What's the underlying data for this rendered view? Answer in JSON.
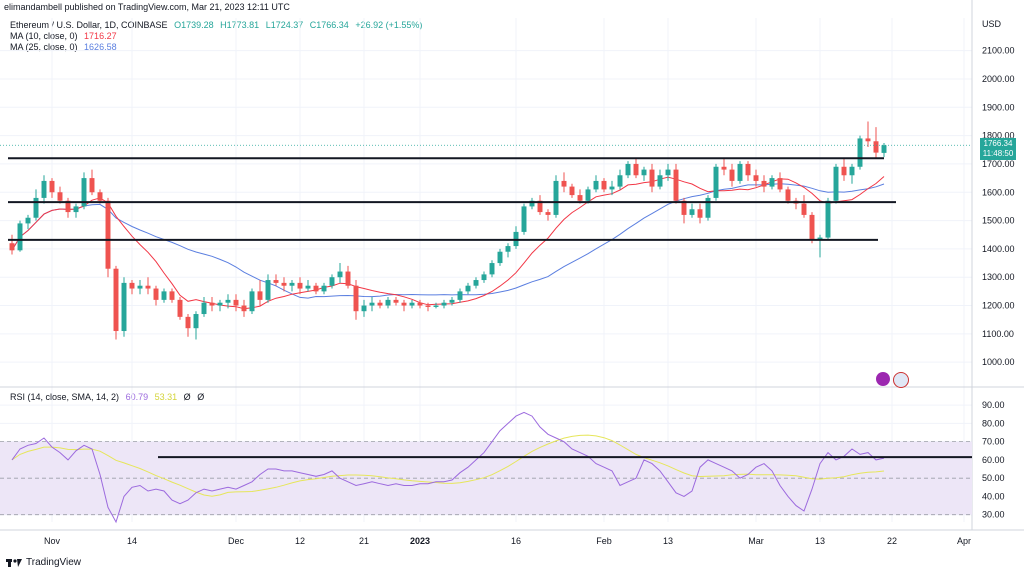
{
  "header": {
    "published": "elimandambell published on TradingView.com, Mar 21, 2023 12:11 UTC"
  },
  "legend": {
    "symbol": "Ethereum / U.S. Dollar, 1D, COINBASE",
    "open": "O1739.28",
    "high": "H1773.81",
    "low": "L1724.37",
    "close": "C1766.34",
    "change": "+26.92 (+1.55%)",
    "ma10_label": "MA (10, close, 0)",
    "ma10_value": "1716.27",
    "ma25_label": "MA (25, close, 0)",
    "ma25_value": "1626.58",
    "rsi_label": "RSI (14, close, SMA, 14, 2)",
    "rsi_value": "60.79",
    "rsi_ma_value": "53.31",
    "rsi_extra1": "Ø",
    "rsi_extra2": "Ø"
  },
  "price_axis": {
    "currency": "USD",
    "ticks": [
      "2100.00",
      "2000.00",
      "1900.00",
      "1800.00",
      "1700.00",
      "1600.00",
      "1500.00",
      "1400.00",
      "1300.00",
      "1200.00",
      "1100.00",
      "1000.00"
    ],
    "last_price": "1766.34",
    "countdown": "11:48:50"
  },
  "rsi_axis": {
    "ticks": [
      "90.00",
      "80.00",
      "70.00",
      "60.00",
      "50.00",
      "40.00",
      "30.00"
    ]
  },
  "time_axis": {
    "labels": [
      "Nov",
      "14",
      "Dec",
      "12",
      "21",
      "2023",
      "16",
      "Feb",
      "13",
      "Mar",
      "13",
      "22",
      "Apr"
    ]
  },
  "footer": {
    "brand": "TradingView"
  },
  "colors": {
    "up": "#26a69a",
    "down": "#ef5350",
    "ma10": "#f23645",
    "ma25": "#5b7fe0",
    "rsi": "#9c6ade",
    "rsi_ma": "#e6e65a",
    "rsi_band": "#ede6f7"
  },
  "chart_data": {
    "type": "candlestick",
    "title": "Ethereum / U.S. Dollar, 1D, COINBASE",
    "ylim": [
      930,
      2180
    ],
    "candles": [
      [
        1420,
        1450,
        1380,
        1395
      ],
      [
        1395,
        1500,
        1390,
        1490
      ],
      [
        1490,
        1520,
        1470,
        1510
      ],
      [
        1510,
        1610,
        1500,
        1580
      ],
      [
        1580,
        1660,
        1560,
        1640
      ],
      [
        1640,
        1650,
        1580,
        1600
      ],
      [
        1600,
        1620,
        1560,
        1570
      ],
      [
        1570,
        1580,
        1510,
        1530
      ],
      [
        1530,
        1560,
        1510,
        1550
      ],
      [
        1550,
        1670,
        1540,
        1650
      ],
      [
        1650,
        1680,
        1590,
        1600
      ],
      [
        1600,
        1610,
        1560,
        1570
      ],
      [
        1570,
        1580,
        1300,
        1330
      ],
      [
        1330,
        1340,
        1080,
        1110
      ],
      [
        1110,
        1300,
        1090,
        1280
      ],
      [
        1280,
        1290,
        1240,
        1260
      ],
      [
        1260,
        1290,
        1240,
        1270
      ],
      [
        1270,
        1300,
        1240,
        1260
      ],
      [
        1260,
        1270,
        1200,
        1220
      ],
      [
        1220,
        1260,
        1210,
        1250
      ],
      [
        1250,
        1260,
        1210,
        1220
      ],
      [
        1220,
        1230,
        1150,
        1160
      ],
      [
        1160,
        1170,
        1090,
        1120
      ],
      [
        1120,
        1180,
        1080,
        1170
      ],
      [
        1170,
        1230,
        1160,
        1210
      ],
      [
        1210,
        1230,
        1180,
        1200
      ],
      [
        1200,
        1220,
        1180,
        1210
      ],
      [
        1210,
        1240,
        1190,
        1220
      ],
      [
        1220,
        1240,
        1180,
        1200
      ],
      [
        1200,
        1220,
        1160,
        1180
      ],
      [
        1180,
        1260,
        1170,
        1250
      ],
      [
        1250,
        1290,
        1200,
        1220
      ],
      [
        1220,
        1310,
        1210,
        1290
      ],
      [
        1290,
        1310,
        1270,
        1280
      ],
      [
        1280,
        1300,
        1250,
        1270
      ],
      [
        1270,
        1290,
        1250,
        1280
      ],
      [
        1280,
        1300,
        1240,
        1260
      ],
      [
        1260,
        1290,
        1250,
        1270
      ],
      [
        1270,
        1280,
        1240,
        1250
      ],
      [
        1250,
        1280,
        1240,
        1270
      ],
      [
        1270,
        1310,
        1260,
        1300
      ],
      [
        1300,
        1350,
        1280,
        1320
      ],
      [
        1320,
        1340,
        1260,
        1270
      ],
      [
        1270,
        1290,
        1150,
        1180
      ],
      [
        1180,
        1220,
        1160,
        1200
      ],
      [
        1200,
        1230,
        1180,
        1210
      ],
      [
        1210,
        1220,
        1190,
        1200
      ],
      [
        1200,
        1230,
        1190,
        1220
      ],
      [
        1220,
        1230,
        1200,
        1210
      ],
      [
        1210,
        1220,
        1180,
        1200
      ],
      [
        1200,
        1220,
        1190,
        1210
      ],
      [
        1210,
        1220,
        1190,
        1200
      ],
      [
        1200,
        1210,
        1180,
        1195
      ],
      [
        1195,
        1210,
        1190,
        1200
      ],
      [
        1200,
        1220,
        1190,
        1210
      ],
      [
        1210,
        1230,
        1200,
        1220
      ],
      [
        1220,
        1260,
        1210,
        1250
      ],
      [
        1250,
        1280,
        1240,
        1270
      ],
      [
        1270,
        1300,
        1260,
        1290
      ],
      [
        1290,
        1320,
        1280,
        1310
      ],
      [
        1310,
        1360,
        1300,
        1350
      ],
      [
        1350,
        1400,
        1340,
        1390
      ],
      [
        1390,
        1420,
        1370,
        1410
      ],
      [
        1410,
        1480,
        1400,
        1460
      ],
      [
        1460,
        1560,
        1450,
        1550
      ],
      [
        1550,
        1580,
        1540,
        1570
      ],
      [
        1570,
        1590,
        1520,
        1530
      ],
      [
        1530,
        1540,
        1500,
        1520
      ],
      [
        1520,
        1660,
        1510,
        1640
      ],
      [
        1640,
        1670,
        1600,
        1620
      ],
      [
        1620,
        1630,
        1580,
        1590
      ],
      [
        1590,
        1610,
        1560,
        1570
      ],
      [
        1570,
        1620,
        1560,
        1610
      ],
      [
        1610,
        1660,
        1600,
        1640
      ],
      [
        1640,
        1650,
        1600,
        1610
      ],
      [
        1610,
        1640,
        1590,
        1620
      ],
      [
        1620,
        1680,
        1610,
        1660
      ],
      [
        1660,
        1710,
        1650,
        1700
      ],
      [
        1700,
        1720,
        1650,
        1660
      ],
      [
        1660,
        1690,
        1640,
        1680
      ],
      [
        1680,
        1700,
        1600,
        1620
      ],
      [
        1620,
        1680,
        1610,
        1660
      ],
      [
        1660,
        1700,
        1640,
        1680
      ],
      [
        1680,
        1700,
        1560,
        1570
      ],
      [
        1570,
        1580,
        1490,
        1520
      ],
      [
        1520,
        1560,
        1510,
        1540
      ],
      [
        1540,
        1560,
        1490,
        1510
      ],
      [
        1510,
        1590,
        1500,
        1580
      ],
      [
        1580,
        1700,
        1570,
        1690
      ],
      [
        1690,
        1720,
        1660,
        1680
      ],
      [
        1680,
        1700,
        1620,
        1640
      ],
      [
        1640,
        1710,
        1630,
        1700
      ],
      [
        1700,
        1710,
        1640,
        1660
      ],
      [
        1660,
        1680,
        1620,
        1640
      ],
      [
        1640,
        1660,
        1600,
        1620
      ],
      [
        1620,
        1660,
        1610,
        1650
      ],
      [
        1650,
        1670,
        1600,
        1610
      ],
      [
        1610,
        1620,
        1560,
        1570
      ],
      [
        1570,
        1580,
        1540,
        1560
      ],
      [
        1560,
        1590,
        1510,
        1520
      ],
      [
        1520,
        1530,
        1420,
        1430
      ],
      [
        1430,
        1450,
        1370,
        1440
      ],
      [
        1440,
        1580,
        1430,
        1570
      ],
      [
        1570,
        1700,
        1560,
        1690
      ],
      [
        1690,
        1720,
        1640,
        1660
      ],
      [
        1660,
        1700,
        1630,
        1690
      ],
      [
        1690,
        1800,
        1680,
        1790
      ],
      [
        1790,
        1850,
        1760,
        1780
      ],
      [
        1780,
        1830,
        1720,
        1740
      ],
      [
        1739,
        1774,
        1724,
        1766
      ]
    ],
    "support_resistance": [
      1720,
      1565,
      1432
    ],
    "rsi": {
      "ylim": [
        26,
        95
      ],
      "guide_level": 61.5,
      "band": [
        30,
        70
      ],
      "values": [
        60,
        66,
        68,
        69,
        72,
        67,
        64,
        60,
        65,
        68,
        66,
        52,
        34,
        26,
        40,
        45,
        46,
        43,
        44,
        43,
        38,
        36,
        38,
        42,
        44,
        43,
        44,
        45,
        44,
        46,
        48,
        52,
        55,
        55,
        54,
        54,
        53,
        52,
        51,
        52,
        54,
        50,
        48,
        46,
        47,
        48,
        47,
        46,
        47,
        46,
        46,
        47,
        47,
        48,
        48,
        49,
        53,
        56,
        60,
        64,
        70,
        76,
        80,
        84,
        86,
        84,
        78,
        74,
        72,
        70,
        66,
        64,
        62,
        58,
        56,
        54,
        46,
        48,
        50,
        60,
        58,
        54,
        48,
        42,
        40,
        43,
        56,
        60,
        58,
        56,
        54,
        50,
        52,
        56,
        58,
        54,
        46,
        40,
        35,
        32,
        44,
        58,
        64,
        60,
        62,
        66,
        63,
        64,
        60,
        61
      ]
    }
  }
}
